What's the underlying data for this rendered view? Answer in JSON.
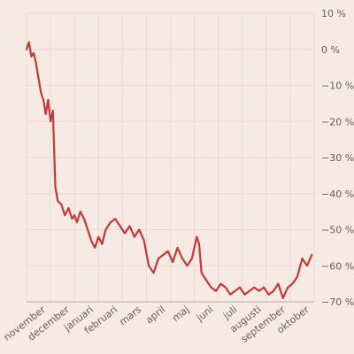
{
  "chart_data": {
    "type": "line",
    "title": "",
    "xlabel": "",
    "ylabel": "",
    "ylim": [
      -70,
      10
    ],
    "y_ticks": [
      10,
      0,
      -10,
      -20,
      -30,
      -40,
      -50,
      -60,
      -70
    ],
    "y_tick_labels": [
      "10 %",
      "0 %",
      "−10 %",
      "−20 %",
      "−30 %",
      "−40 %",
      "−50 %",
      "−60 %",
      "−70 %"
    ],
    "x_ticks": [
      "november",
      "december",
      "januari",
      "februari",
      "mars",
      "april",
      "maj",
      "juni",
      "juli",
      "augusti",
      "september",
      "oktober"
    ],
    "grid": true,
    "colors": {
      "series": "#c13a38",
      "background": "#f7e9e4",
      "grid": "#efd9d2"
    },
    "series": [
      {
        "x": [
          0,
          0.1,
          0.2,
          0.3,
          0.4,
          0.5,
          0.6,
          0.7,
          0.8,
          0.9,
          1.0,
          1.1,
          1.2,
          1.3,
          1.45,
          1.6,
          1.75,
          1.9,
          2.0,
          2.1,
          2.25,
          2.4,
          2.55,
          2.7,
          2.85,
          3.0,
          3.15,
          3.3,
          3.5,
          3.7,
          3.9,
          4.1,
          4.3,
          4.5,
          4.7,
          4.9,
          5.1,
          5.3,
          5.5,
          5.7,
          5.9,
          6.1,
          6.3,
          6.5,
          6.7,
          6.9,
          7.1,
          7.2,
          7.3,
          7.5,
          7.7,
          7.9,
          8.1,
          8.3,
          8.5,
          8.7,
          8.9,
          9.1,
          9.3,
          9.5,
          9.7,
          9.9,
          10.1,
          10.3,
          10.5,
          10.7,
          10.9,
          11.1,
          11.3,
          11.5,
          11.7,
          11.9
        ],
        "values": [
          0,
          2,
          -2,
          -1,
          -4,
          -8,
          -12,
          -14,
          -18,
          -14,
          -20,
          -17,
          -38,
          -42,
          -43,
          -46,
          -44,
          -47,
          -46,
          -48,
          -45,
          -47,
          -50,
          -53,
          -55,
          -52,
          -54,
          -50,
          -48,
          -47,
          -49,
          -51,
          -49,
          -52,
          -50,
          -53,
          -60,
          -62,
          -58,
          -57,
          -56,
          -59,
          -55,
          -58,
          -60,
          -58,
          -52,
          -54,
          -62,
          -64,
          -66,
          -67,
          -65,
          -66,
          -68,
          -67,
          -66,
          -68,
          -67,
          -66,
          -67,
          -66,
          -68,
          -67,
          -65,
          -69,
          -66,
          -65,
          -63,
          -58,
          -60,
          -57
        ]
      }
    ]
  }
}
